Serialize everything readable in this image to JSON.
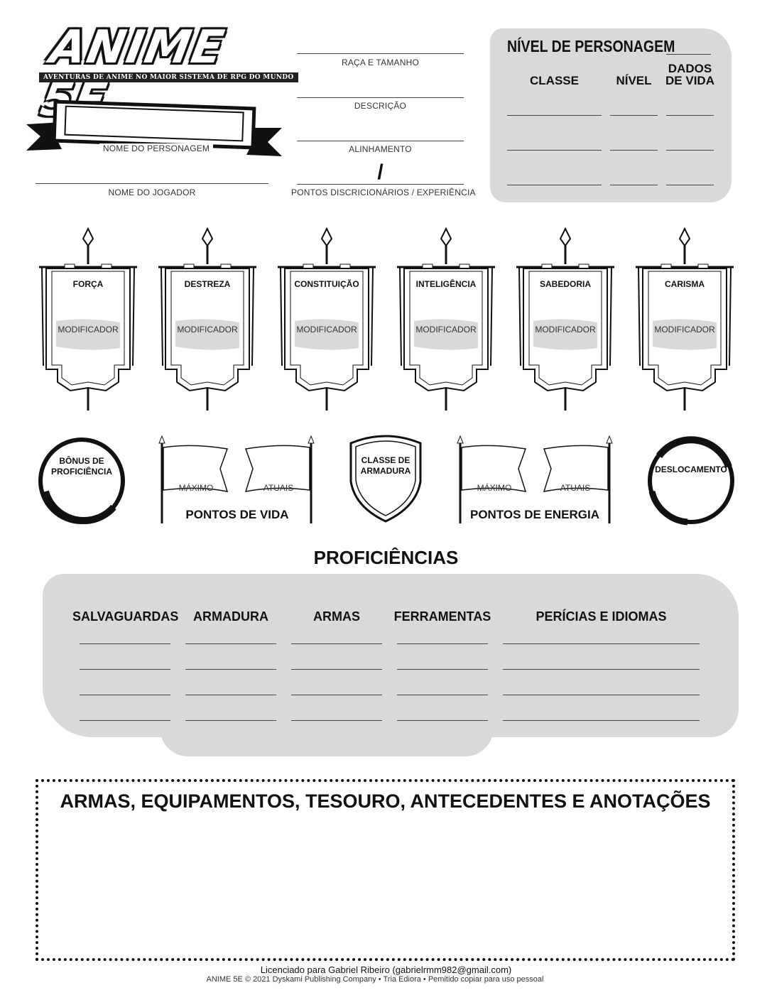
{
  "logo": {
    "title": "ANIME 5E",
    "tagline": "AVENTURAS DE ANIME NO MAIOR SISTEMA DE RPG DO MUNDO"
  },
  "header": {
    "character_name_label": "NOME DO PERSONAGEM",
    "player_name_label": "NOME DO JOGADOR",
    "race_size_label": "RAÇA E TAMANHO",
    "description_label": "DESCRIÇÃO",
    "alignment_label": "ALINHAMENTO",
    "points_slash": "/",
    "points_label": "PONTOS DISCRICIONÁRIOS / EXPERIÊNCIA"
  },
  "level_box": {
    "title": "NÍVEL DE PERSONAGEM",
    "col_class": "CLASSE",
    "col_level": "NÍVEL",
    "col_hitdice_1": "DADOS",
    "col_hitdice_2": "DE VIDA"
  },
  "attributes": [
    {
      "name": "FORÇA",
      "mod_label": "MODIFICADOR"
    },
    {
      "name": "DESTREZA",
      "mod_label": "MODIFICADOR"
    },
    {
      "name": "CONSTITUIÇÃO",
      "mod_label": "MODIFICADOR"
    },
    {
      "name": "INTELIGÊNCIA",
      "mod_label": "MODIFICADOR"
    },
    {
      "name": "SABEDORIA",
      "mod_label": "MODIFICADOR"
    },
    {
      "name": "CARISMA",
      "mod_label": "MODIFICADOR"
    }
  ],
  "combat": {
    "proficiency_1": "BÔNUS DE",
    "proficiency_2": "PROFICIÊNCIA",
    "hp_max": "MÁXIMO",
    "hp_current": "ATUAIS",
    "hp_title": "PONTOS DE VIDA",
    "ac_1": "CLASSE DE",
    "ac_2": "ARMADURA",
    "ep_max": "MÁXIMO",
    "ep_current": "ATUAIS",
    "ep_title": "PONTOS DE ENERGIA",
    "speed": "DESLOCAMENTO"
  },
  "proficiencies": {
    "title": "PROFICIÊNCIAS",
    "columns": [
      "SALVAGUARDAS",
      "ARMADURA",
      "ARMAS",
      "FERRAMENTAS",
      "PERÍCIAS E IDIOMAS"
    ]
  },
  "notes": {
    "title": "ARMAS, EQUIPAMENTOS, TESOURO, ANTECEDENTES E ANOTAÇÕES"
  },
  "footer": {
    "license": "Licenciado para Gabriel Ribeiro (gabrielrmm982@gmail.com)",
    "copyright": "ANIME 5E © 2021 Dyskami Publishing Company • Tria Ediora • Pemitido copiar para uso pessoal"
  }
}
